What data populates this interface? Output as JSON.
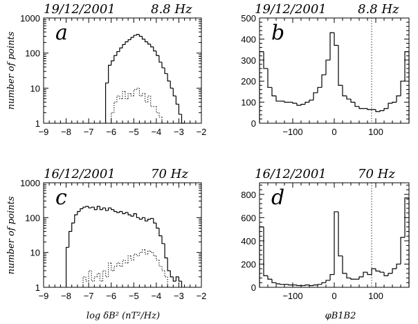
{
  "chart_data": [
    {
      "id": "a",
      "type": "histogram",
      "panel_label": "a",
      "title_date": "19/12/2001",
      "title_freq": "8.8 Hz",
      "ylabel": "number of points",
      "xlabel": "",
      "xlim": [
        -9,
        -2
      ],
      "ylim": [
        1,
        1000
      ],
      "yscale": "log",
      "xticks": [
        -9,
        -8,
        -7,
        -6,
        -5,
        -4,
        -3,
        -2
      ],
      "yticks": [
        1,
        10,
        100,
        1000
      ],
      "yticklabels": [
        "1",
        "10",
        "100",
        "1000"
      ],
      "bin_width": 0.125,
      "series": [
        {
          "style": "solid",
          "x": [
            -6.25,
            -6.125,
            -6,
            -5.875,
            -5.75,
            -5.625,
            -5.5,
            -5.375,
            -5.25,
            -5.125,
            -5,
            -4.875,
            -4.75,
            -4.625,
            -4.5,
            -4.375,
            -4.25,
            -4.125,
            -4,
            -3.875,
            -3.75,
            -3.625,
            -3.5,
            -3.375,
            -3.25,
            -3.125,
            -3,
            -2.875
          ],
          "values": [
            14,
            45,
            60,
            85,
            110,
            140,
            175,
            210,
            240,
            280,
            320,
            340,
            300,
            250,
            210,
            180,
            150,
            115,
            85,
            55,
            38,
            26,
            16,
            10,
            6,
            3.5,
            1.8,
            1
          ]
        },
        {
          "style": "dotted",
          "x": [
            -6,
            -5.875,
            -5.75,
            -5.625,
            -5.5,
            -5.375,
            -5.25,
            -5.125,
            -5,
            -4.875,
            -4.75,
            -4.625,
            -4.5,
            -4.375,
            -4.25,
            -4.125,
            -4,
            -3.875,
            -3.75
          ],
          "values": [
            2,
            4,
            6,
            5,
            8,
            5,
            7,
            6,
            9,
            10,
            6,
            7,
            4,
            6,
            3,
            3,
            2,
            1.5,
            1
          ]
        }
      ]
    },
    {
      "id": "b",
      "type": "histogram",
      "panel_label": "b",
      "title_date": "19/12/2001",
      "title_freq": "8.8 Hz",
      "ylabel": "",
      "xlabel": "",
      "xlim": [
        -180,
        180
      ],
      "ylim": [
        0,
        500
      ],
      "yscale": "linear",
      "xticks": [
        -100,
        0,
        100
      ],
      "yticks": [
        0,
        100,
        200,
        300,
        400,
        500
      ],
      "yticklabels": [
        "0",
        "100",
        "200",
        "300",
        "400",
        "500"
      ],
      "vline": 90,
      "bin_width": 10,
      "series": [
        {
          "style": "solid",
          "x": [
            -180,
            -170,
            -160,
            -150,
            -140,
            -130,
            -120,
            -110,
            -100,
            -90,
            -80,
            -70,
            -60,
            -50,
            -40,
            -30,
            -20,
            -10,
            0,
            10,
            20,
            30,
            40,
            50,
            60,
            70,
            80,
            90,
            100,
            110,
            120,
            130,
            140,
            150,
            160,
            170
          ],
          "values": [
            340,
            260,
            170,
            130,
            105,
            105,
            100,
            100,
            95,
            85,
            90,
            100,
            110,
            145,
            170,
            230,
            300,
            430,
            370,
            180,
            130,
            115,
            100,
            80,
            70,
            70,
            65,
            65,
            55,
            60,
            70,
            95,
            100,
            130,
            200,
            340
          ]
        }
      ]
    },
    {
      "id": "c",
      "type": "histogram",
      "panel_label": "c",
      "title_date": "16/12/2001",
      "title_freq": "70 Hz",
      "ylabel": "number of points",
      "xlabel": "log δB² (nT²/Hz)",
      "xlim": [
        -9,
        -2
      ],
      "ylim": [
        1,
        1000
      ],
      "yscale": "log",
      "xticks": [
        -9,
        -8,
        -7,
        -6,
        -5,
        -4,
        -3,
        -2
      ],
      "yticks": [
        1,
        10,
        100,
        1000
      ],
      "yticklabels": [
        "1",
        "10",
        "100",
        "1000"
      ],
      "bin_width": 0.125,
      "series": [
        {
          "style": "solid",
          "x": [
            -8,
            -7.875,
            -7.75,
            -7.625,
            -7.5,
            -7.375,
            -7.25,
            -7.125,
            -7,
            -6.875,
            -6.75,
            -6.625,
            -6.5,
            -6.375,
            -6.25,
            -6.125,
            -6,
            -5.875,
            -5.75,
            -5.625,
            -5.5,
            -5.375,
            -5.25,
            -5.125,
            -5,
            -4.875,
            -4.75,
            -4.625,
            -4.5,
            -4.375,
            -4.25,
            -4.125,
            -4,
            -3.875,
            -3.75,
            -3.625,
            -3.5,
            -3.375,
            -3.25,
            -3.125,
            -3
          ],
          "values": [
            14,
            40,
            70,
            120,
            150,
            180,
            200,
            210,
            190,
            200,
            170,
            210,
            170,
            190,
            160,
            190,
            170,
            150,
            140,
            150,
            130,
            140,
            120,
            110,
            130,
            100,
            90,
            100,
            80,
            90,
            95,
            70,
            50,
            30,
            18,
            7,
            3,
            2,
            1.5,
            2,
            1.5
          ]
        },
        {
          "style": "dotted",
          "x": [
            -7.25,
            -7.125,
            -7,
            -6.875,
            -6.75,
            -6.625,
            -6.5,
            -6.375,
            -6.25,
            -6.125,
            -6,
            -5.875,
            -5.75,
            -5.625,
            -5.5,
            -5.375,
            -5.25,
            -5.125,
            -5,
            -4.875,
            -4.75,
            -4.625,
            -4.5,
            -4.375,
            -4.25,
            -4.125,
            -4,
            -3.875,
            -3.75,
            -3.625
          ],
          "values": [
            2,
            1.5,
            3,
            1.5,
            2,
            2.5,
            1.5,
            3,
            2,
            5,
            3,
            4,
            5,
            4,
            6,
            5,
            8,
            6,
            9,
            8,
            10,
            12,
            9,
            11,
            10,
            8,
            6,
            4,
            3,
            2
          ]
        }
      ]
    },
    {
      "id": "d",
      "type": "histogram",
      "panel_label": "d",
      "title_date": "16/12/2001",
      "title_freq": "70 Hz",
      "ylabel": "",
      "xlabel": "φB1B2",
      "xlim": [
        -180,
        180
      ],
      "ylim": [
        0,
        900
      ],
      "yscale": "linear",
      "xticks": [
        -100,
        0,
        100
      ],
      "yticks": [
        0,
        200,
        400,
        600,
        800
      ],
      "yticklabels": [
        "0",
        "200",
        "400",
        "600",
        "800"
      ],
      "vline": 90,
      "bin_width": 10,
      "series": [
        {
          "style": "solid",
          "x": [
            -180,
            -170,
            -160,
            -150,
            -140,
            -130,
            -120,
            -110,
            -100,
            -90,
            -80,
            -70,
            -60,
            -50,
            -40,
            -30,
            -20,
            -10,
            0,
            10,
            20,
            30,
            40,
            50,
            60,
            70,
            80,
            90,
            100,
            110,
            120,
            130,
            140,
            150,
            160,
            170
          ],
          "values": [
            520,
            100,
            70,
            40,
            30,
            25,
            25,
            20,
            20,
            15,
            15,
            20,
            15,
            20,
            25,
            40,
            60,
            110,
            650,
            270,
            120,
            80,
            70,
            70,
            90,
            130,
            110,
            160,
            140,
            130,
            100,
            120,
            160,
            200,
            430,
            770
          ]
        }
      ]
    }
  ]
}
